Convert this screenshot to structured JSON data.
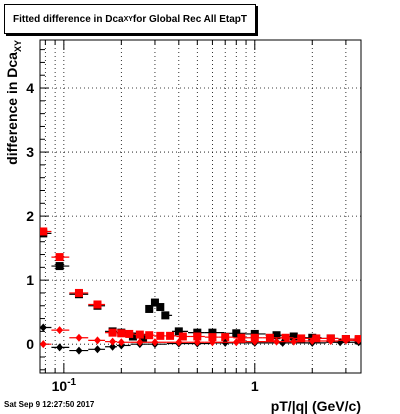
{
  "title": {
    "main": "Fitted difference in Dca",
    "sub": "XY",
    "rest": " for Global Rec All EtapT"
  },
  "timestamp": "Sat Sep  9 12:27:50 2017",
  "chart_data": {
    "type": "scatter",
    "xlabel": "pT/|q| (GeV/c)",
    "ylabel": "difference in Dca",
    "ylabel_sub": "XY",
    "xscale": "log",
    "xlim": [
      0.075,
      3.6
    ],
    "ylim": [
      -0.45,
      4.75
    ],
    "x_tick_labels": [
      {
        "value": 0.1,
        "base": "10",
        "exp": "-1"
      },
      {
        "value": 1,
        "label": "1"
      }
    ],
    "y_ticks": [
      0,
      1,
      2,
      3,
      4
    ],
    "grid": true,
    "colors": {
      "black": "#000000",
      "red": "#ff0000"
    },
    "series": [
      {
        "marker": "square",
        "color": "#000000",
        "x": [
          0.078,
          0.095,
          0.12,
          0.15,
          0.18,
          0.2,
          0.23,
          0.26,
          0.28,
          0.3,
          0.32,
          0.34,
          0.4,
          0.5,
          0.6,
          0.8,
          1.0,
          1.3,
          1.6,
          2.0,
          2.5,
          3.0,
          3.5
        ],
        "y": [
          1.73,
          1.22,
          0.78,
          0.6,
          0.2,
          0.18,
          0.12,
          0.1,
          0.55,
          0.65,
          0.58,
          0.45,
          0.2,
          0.18,
          0.18,
          0.17,
          0.16,
          0.14,
          0.12,
          0.1,
          0.09,
          0.08,
          0.06
        ]
      },
      {
        "marker": "square",
        "color": "#ff0000",
        "x": [
          0.078,
          0.095,
          0.12,
          0.15,
          0.18,
          0.2,
          0.22,
          0.25,
          0.28,
          0.32,
          0.36,
          0.42,
          0.5,
          0.6,
          0.7,
          0.85,
          1.0,
          1.2,
          1.45,
          1.75,
          2.1,
          2.5,
          3.0,
          3.5
        ],
        "y": [
          1.76,
          1.36,
          0.8,
          0.62,
          0.18,
          0.17,
          0.16,
          0.15,
          0.14,
          0.13,
          0.13,
          0.12,
          0.12,
          0.11,
          0.11,
          0.1,
          0.1,
          0.1,
          0.1,
          0.09,
          0.09,
          0.09,
          0.08,
          0.08
        ]
      },
      {
        "marker": "diamond",
        "color": "#000000",
        "x": [
          0.078,
          0.095,
          0.12,
          0.15,
          0.18,
          0.2,
          0.25,
          0.3,
          0.4,
          0.5,
          0.7,
          1.0,
          1.4,
          2.0,
          2.8,
          3.5
        ],
        "y": [
          0.26,
          -0.05,
          -0.1,
          -0.08,
          -0.04,
          -0.02,
          0.0,
          0.0,
          0.01,
          0.01,
          0.02,
          0.02,
          0.02,
          0.02,
          0.03,
          0.03
        ]
      },
      {
        "marker": "diamond",
        "color": "#ff0000",
        "x": [
          0.078,
          0.095,
          0.12,
          0.15,
          0.18,
          0.2,
          0.25,
          0.3,
          0.4,
          0.5,
          0.6,
          0.8,
          1.0,
          1.3,
          1.6,
          2.0,
          2.5,
          3.0,
          3.5
        ],
        "y": [
          0.0,
          0.22,
          0.1,
          0.06,
          0.04,
          0.03,
          0.03,
          0.03,
          0.03,
          0.03,
          0.03,
          0.03,
          0.04,
          0.04,
          0.04,
          0.05,
          0.05,
          0.06,
          0.06
        ]
      }
    ]
  }
}
